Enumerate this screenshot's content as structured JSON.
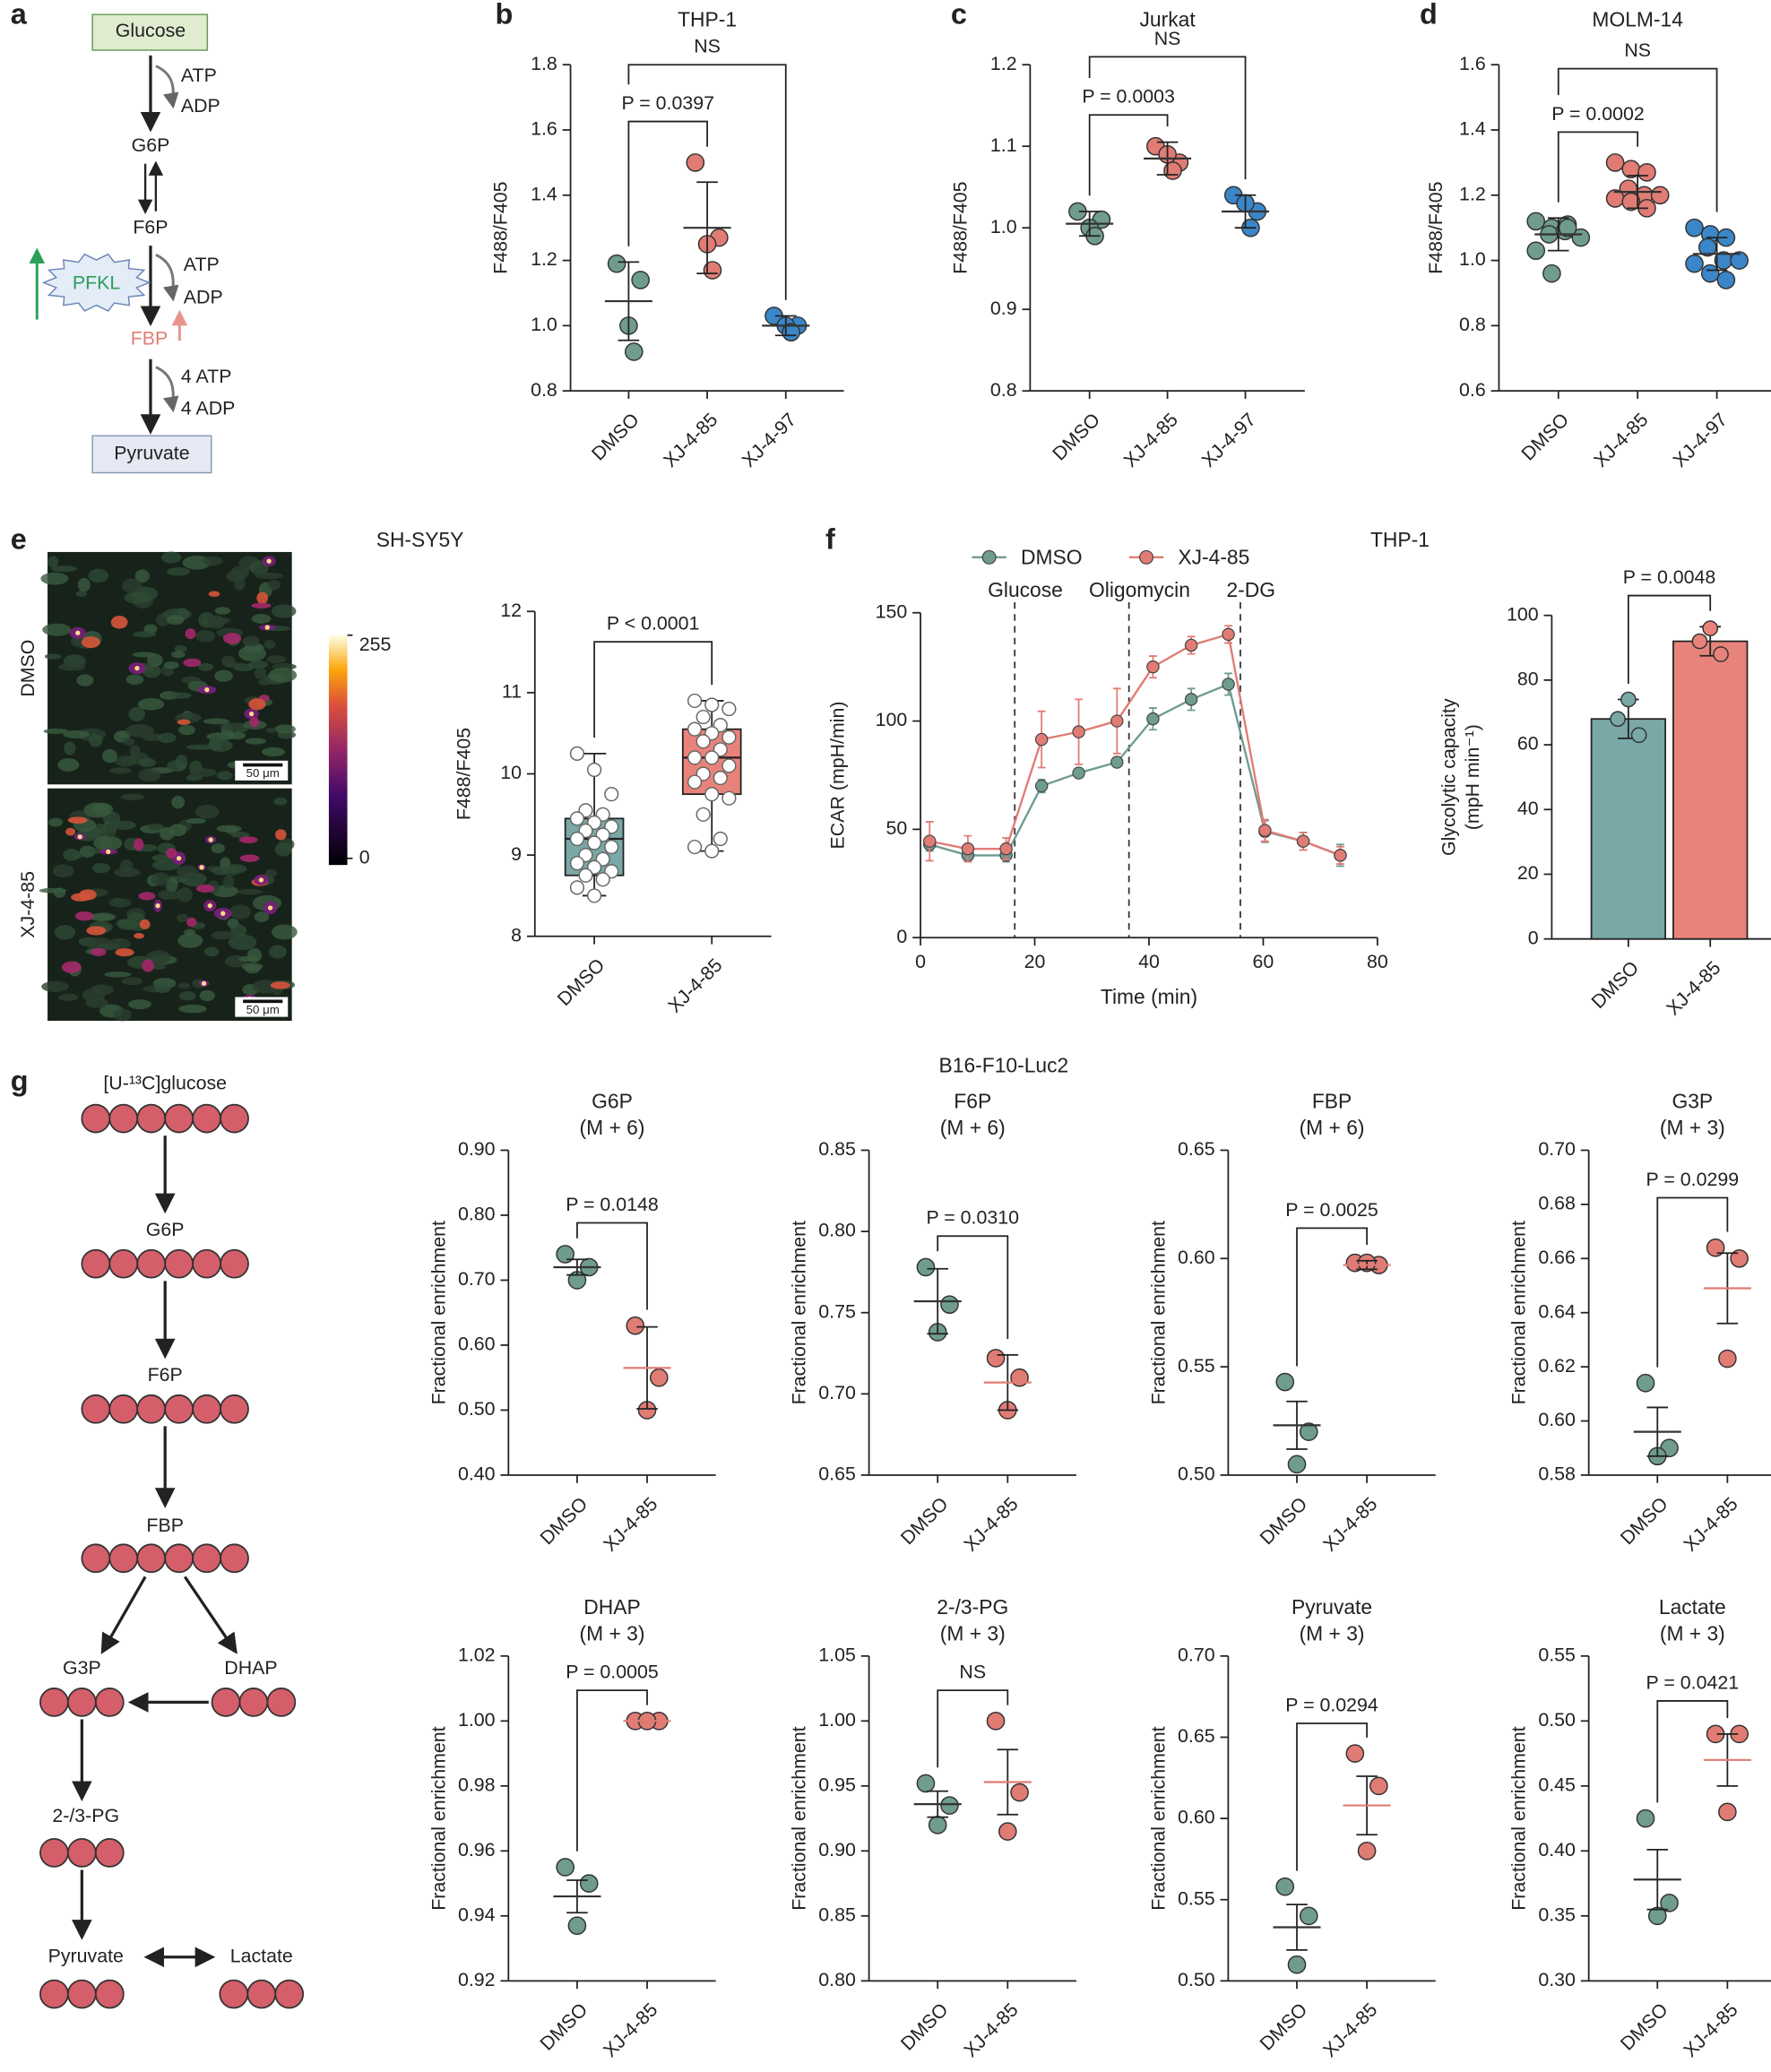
{
  "panel_labels": [
    "a",
    "b",
    "c",
    "d",
    "e",
    "f",
    "g"
  ],
  "pathway_a": {
    "nodes": [
      "Glucose",
      "G6P",
      "F6P",
      "FBP",
      "Pyruvate"
    ],
    "cofactors": [
      "ATP",
      "ADP",
      "ATP",
      "ADP",
      "4 ATP",
      "4 ADP"
    ],
    "enzyme": "PFKL"
  },
  "imaging_e": {
    "title": "SH-SY5Y",
    "rows": [
      "DMSO",
      "XJ-4-85"
    ],
    "scale_bar": "50 μm",
    "colorbar_ticks": [
      255,
      0
    ]
  },
  "tracing_g": {
    "title": "B16-F10-Luc2",
    "tracer": "[U-¹³C]glucose",
    "nodes": [
      "G6P",
      "F6P",
      "FBP",
      "G3P",
      "DHAP",
      "2-/3-PG",
      "Pyruvate",
      "Lactate"
    ]
  },
  "chart_data": [
    {
      "type": "strip",
      "title": "THP-1",
      "y_label": "F488/F405",
      "categories": [
        "DMSO",
        "XJ-4-85",
        "XJ-4-97"
      ],
      "colors": [
        "#6f9c8f",
        "#e07c74",
        "#3b86c8"
      ],
      "points": [
        [
          1.19,
          1.14,
          1.0,
          0.92
        ],
        [
          1.5,
          1.27,
          1.25,
          1.17
        ],
        [
          1.03,
          1.0,
          1.0,
          0.98
        ]
      ],
      "means": [
        1.075,
        1.3,
        1.0
      ],
      "errors": [
        0.12,
        0.14,
        0.03
      ],
      "annotations": [
        "P = 0.0397",
        "NS"
      ],
      "ylim": [
        0.8,
        1.8
      ],
      "yticks": [
        0.8,
        {
          "value": 1,
          "label": "1.0"
        },
        1.2,
        1.4,
        1.6,
        1.8
      ]
    },
    {
      "type": "strip",
      "title": "Jurkat",
      "y_label": "F488/F405",
      "categories": [
        "DMSO",
        "XJ-4-85",
        "XJ-4-97"
      ],
      "colors": [
        "#6f9c8f",
        "#e07c74",
        "#3b86c8"
      ],
      "points": [
        [
          1.02,
          1.01,
          1.0,
          0.99
        ],
        [
          1.1,
          1.08,
          1.09,
          1.07
        ],
        [
          1.04,
          1.02,
          1.03,
          1.0
        ]
      ],
      "means": [
        1.005,
        1.085,
        1.02
      ],
      "errors": [
        0.015,
        0.02,
        0.02
      ],
      "annotations": [
        "P = 0.0003",
        "NS"
      ],
      "ylim": [
        0.8,
        1.2
      ],
      "yticks": [
        0.8,
        0.9,
        {
          "value": 1,
          "label": "1.0"
        },
        1.1,
        1.2
      ]
    },
    {
      "type": "strip",
      "title": "MOLM-14",
      "y_label": "F488/F405",
      "categories": [
        "DMSO",
        "XJ-4-85",
        "XJ-4-97"
      ],
      "colors": [
        "#6f9c8f",
        "#e07c74",
        "#3b86c8"
      ],
      "points": [
        [
          1.12,
          1.1,
          1.11,
          1.08,
          1.09,
          1.07,
          1.03,
          0.96,
          1.1
        ],
        [
          1.3,
          1.28,
          1.27,
          1.22,
          1.2,
          1.2,
          1.19,
          1.18,
          1.16
        ],
        [
          1.1,
          1.08,
          1.07,
          1.04,
          1.0,
          1.0,
          0.99,
          0.96,
          0.94
        ]
      ],
      "means": [
        1.08,
        1.21,
        1.02
      ],
      "errors": [
        0.05,
        0.05,
        0.05
      ],
      "annotations": [
        "P = 0.0002",
        "NS"
      ],
      "ylim": [
        0.6,
        1.6
      ],
      "yticks": [
        0.6,
        0.8,
        {
          "value": 1,
          "label": "1.0"
        },
        1.2,
        1.4,
        1.6
      ]
    },
    {
      "type": "box",
      "y_label": "F488/F405",
      "categories": [
        "DMSO",
        "XJ-4-85"
      ],
      "colors": [
        "#79a8a6",
        "#e8837b"
      ],
      "boxes": [
        {
          "min": 8.5,
          "q1": 8.75,
          "median": 9.2,
          "q3": 9.45,
          "max": 10.25
        },
        {
          "min": 9.05,
          "q1": 9.75,
          "median": 10.2,
          "q3": 10.55,
          "max": 10.9
        }
      ],
      "points": [
        [
          10.25,
          10.05,
          9.75,
          9.55,
          9.5,
          9.45,
          9.4,
          9.35,
          9.3,
          9.25,
          9.2,
          9.15,
          9.1,
          9.0,
          8.95,
          8.9,
          8.85,
          8.8,
          8.75,
          8.7,
          8.6,
          8.5
        ],
        [
          10.9,
          10.85,
          10.8,
          10.7,
          10.6,
          10.55,
          10.5,
          10.45,
          10.4,
          10.3,
          10.2,
          10.2,
          10.1,
          10.0,
          9.95,
          9.9,
          9.75,
          9.7,
          9.5,
          9.2,
          9.1,
          9.05
        ]
      ],
      "annotations": [
        "P < 0.0001"
      ],
      "ylim": [
        8,
        12
      ],
      "yticks": [
        8,
        9,
        10,
        11,
        12
      ]
    },
    {
      "type": "line",
      "title": "THP-1",
      "x_label": "Time (min)",
      "y_label": "ECAR (mpH/min)",
      "xlim": [
        0,
        80
      ],
      "xticks": [
        0,
        20,
        40,
        60,
        80
      ],
      "ylim": [
        0,
        150
      ],
      "yticks": [
        0,
        50,
        100,
        150
      ],
      "x": [
        1.6,
        8.3,
        15,
        21.2,
        27.7,
        34.4,
        40.7,
        47.4,
        53.9,
        60.3,
        67,
        73.5
      ],
      "series": [
        {
          "name": "DMSO",
          "color": "#6f9c8f",
          "values": [
            43,
            38,
            38,
            70,
            76,
            81,
            101,
            110,
            117,
            49,
            44.5,
            38
          ],
          "errors": [
            3,
            3,
            3,
            3,
            2,
            2,
            5,
            5,
            5,
            5,
            4,
            5
          ]
        },
        {
          "name": "XJ-4-85",
          "color": "#e07c74",
          "values": [
            44.5,
            41,
            41,
            91.5,
            95,
            100,
            125,
            135,
            140,
            49.5,
            44.5,
            38
          ],
          "errors": [
            9,
            6,
            5,
            13,
            15,
            15,
            5,
            4,
            4,
            5,
            4,
            4
          ]
        }
      ],
      "injections": [
        {
          "x": 16.5,
          "label": "Glucose"
        },
        {
          "x": 36.5,
          "label": "Oligomycin"
        },
        {
          "x": 56,
          "label": "2-DG"
        }
      ]
    },
    {
      "type": "bar",
      "y_label": [
        "Glycolytic capacity",
        "(mpH min⁻¹)"
      ],
      "categories": [
        "DMSO",
        "XJ-4-85"
      ],
      "colors": [
        "#79a8a6",
        "#e8837b"
      ],
      "values": [
        68,
        92
      ],
      "errors": [
        6,
        4.5
      ],
      "points": [
        [
          74,
          68,
          63
        ],
        [
          96,
          92,
          88
        ]
      ],
      "annotations": [
        "P = 0.0048"
      ],
      "ylim": [
        0,
        100
      ],
      "yticks": [
        0,
        20,
        40,
        60,
        80,
        100
      ]
    },
    {
      "type": "strip",
      "title": [
        "G6P",
        "(M + 6)"
      ],
      "y_label": "Fractional enrichment",
      "categories": [
        "DMSO",
        "XJ-4-85"
      ],
      "colors": [
        "#6f9c8f",
        "#e07c74"
      ],
      "points": [
        [
          0.74,
          0.72,
          0.7
        ],
        [
          0.63,
          0.55,
          0.5
        ]
      ],
      "means": [
        0.72,
        0.565
      ],
      "errors": [
        0.012,
        0.063
      ],
      "annotations": [
        "P = 0.0148"
      ],
      "ylim": [
        0.4,
        0.9
      ],
      "yticks": [
        {
          "value": 0.4,
          "label": "0.40"
        },
        {
          "value": 0.5,
          "label": "0.50"
        },
        {
          "value": 0.6,
          "label": "0.60"
        },
        {
          "value": 0.7,
          "label": "0.70"
        },
        {
          "value": 0.8,
          "label": "0.80"
        },
        {
          "value": 0.9,
          "label": "0.90"
        }
      ]
    },
    {
      "type": "strip",
      "title": [
        "F6P",
        "(M + 6)"
      ],
      "y_label": "Fractional enrichment",
      "categories": [
        "DMSO",
        "XJ-4-85"
      ],
      "colors": [
        "#6f9c8f",
        "#e07c74"
      ],
      "points": [
        [
          0.778,
          0.755,
          0.738
        ],
        [
          0.722,
          0.71,
          0.69
        ]
      ],
      "means": [
        0.757,
        0.707
      ],
      "errors": [
        0.02,
        0.017
      ],
      "annotations": [
        "P = 0.0310"
      ],
      "ylim": [
        0.65,
        0.85
      ],
      "yticks": [
        0.65,
        {
          "value": 0.7,
          "label": "0.70"
        },
        0.75,
        {
          "value": 0.8,
          "label": "0.80"
        },
        0.85
      ]
    },
    {
      "type": "strip",
      "title": [
        "FBP",
        "(M + 6)"
      ],
      "y_label": "Fractional enrichment",
      "categories": [
        "DMSO",
        "XJ-4-85"
      ],
      "colors": [
        "#6f9c8f",
        "#e07c74"
      ],
      "points": [
        [
          0.543,
          0.52,
          0.505
        ],
        [
          0.598,
          0.597,
          0.598
        ]
      ],
      "means": [
        0.523,
        0.597
      ],
      "errors": [
        0.011,
        0.002
      ],
      "annotations": [
        "P = 0.0025"
      ],
      "ylim": [
        0.5,
        0.65
      ],
      "yticks": [
        {
          "value": 0.5,
          "label": "0.50"
        },
        0.55,
        {
          "value": 0.6,
          "label": "0.60"
        },
        0.65
      ]
    },
    {
      "type": "strip",
      "title": [
        "G3P",
        "(M + 3)"
      ],
      "y_label": "Fractional enrichment",
      "categories": [
        "DMSO",
        "XJ-4-85"
      ],
      "colors": [
        "#6f9c8f",
        "#e07c74"
      ],
      "points": [
        [
          0.614,
          0.59,
          0.587
        ],
        [
          0.664,
          0.66,
          0.623
        ]
      ],
      "means": [
        0.596,
        0.649
      ],
      "errors": [
        0.009,
        0.013
      ],
      "annotations": [
        "P = 0.0299"
      ],
      "ylim": [
        0.58,
        0.7
      ],
      "yticks": [
        0.58,
        {
          "value": 0.6,
          "label": "0.60"
        },
        0.62,
        0.64,
        0.66,
        0.68,
        {
          "value": 0.7,
          "label": "0.70"
        }
      ]
    },
    {
      "type": "strip",
      "title": [
        "DHAP",
        "(M + 3)"
      ],
      "y_label": "Fractional enrichment",
      "categories": [
        "DMSO",
        "XJ-4-85"
      ],
      "colors": [
        "#6f9c8f",
        "#e07c74"
      ],
      "points": [
        [
          0.955,
          0.95,
          0.937
        ],
        [
          1.0,
          1.0,
          1.0
        ]
      ],
      "means": [
        0.946,
        1.0
      ],
      "errors": [
        0.005,
        0
      ],
      "annotations": [
        "P = 0.0005"
      ],
      "ylim": [
        0.92,
        1.02
      ],
      "yticks": [
        0.92,
        0.94,
        0.96,
        0.98,
        {
          "value": 1,
          "label": "1.00"
        },
        1.02
      ]
    },
    {
      "type": "strip",
      "title": [
        "2-/3-PG",
        "(M + 3)"
      ],
      "y_label": "Fractional enrichment",
      "categories": [
        "DMSO",
        "XJ-4-85"
      ],
      "colors": [
        "#6f9c8f",
        "#e07c74"
      ],
      "points": [
        [
          0.952,
          0.935,
          0.92
        ],
        [
          1.0,
          0.945,
          0.915
        ]
      ],
      "means": [
        0.936,
        0.953
      ],
      "errors": [
        0.01,
        0.025
      ],
      "annotations": [
        "NS"
      ],
      "ylim": [
        0.8,
        1.05
      ],
      "yticks": [
        {
          "value": 0.8,
          "label": "0.80"
        },
        0.85,
        {
          "value": 0.9,
          "label": "0.90"
        },
        0.95,
        {
          "value": 1,
          "label": "1.00"
        },
        1.05
      ]
    },
    {
      "type": "strip",
      "title": [
        "Pyruvate",
        "(M + 3)"
      ],
      "y_label": "Fractional enrichment",
      "categories": [
        "DMSO",
        "XJ-4-85"
      ],
      "colors": [
        "#6f9c8f",
        "#e07c74"
      ],
      "points": [
        [
          0.558,
          0.54,
          0.51
        ],
        [
          0.64,
          0.62,
          0.58
        ]
      ],
      "means": [
        0.533,
        0.608
      ],
      "errors": [
        0.014,
        0.018
      ],
      "annotations": [
        "P = 0.0294"
      ],
      "ylim": [
        0.5,
        0.7
      ],
      "yticks": [
        {
          "value": 0.5,
          "label": "0.50"
        },
        0.55,
        {
          "value": 0.6,
          "label": "0.60"
        },
        0.65,
        {
          "value": 0.7,
          "label": "0.70"
        }
      ]
    },
    {
      "type": "strip",
      "title": [
        "Lactate",
        "(M + 3)"
      ],
      "y_label": "Fractional enrichment",
      "categories": [
        "DMSO",
        "XJ-4-85"
      ],
      "colors": [
        "#6f9c8f",
        "#e07c74"
      ],
      "points": [
        [
          0.425,
          0.36,
          0.35
        ],
        [
          0.49,
          0.49,
          0.43
        ]
      ],
      "means": [
        0.378,
        0.47
      ],
      "errors": [
        0.023,
        0.02
      ],
      "annotations": [
        "P = 0.0421"
      ],
      "ylim": [
        0.3,
        0.55
      ],
      "yticks": [
        {
          "value": 0.3,
          "label": "0.30"
        },
        0.35,
        {
          "value": 0.4,
          "label": "0.40"
        },
        0.45,
        {
          "value": 0.5,
          "label": "0.50"
        },
        0.55
      ]
    }
  ]
}
